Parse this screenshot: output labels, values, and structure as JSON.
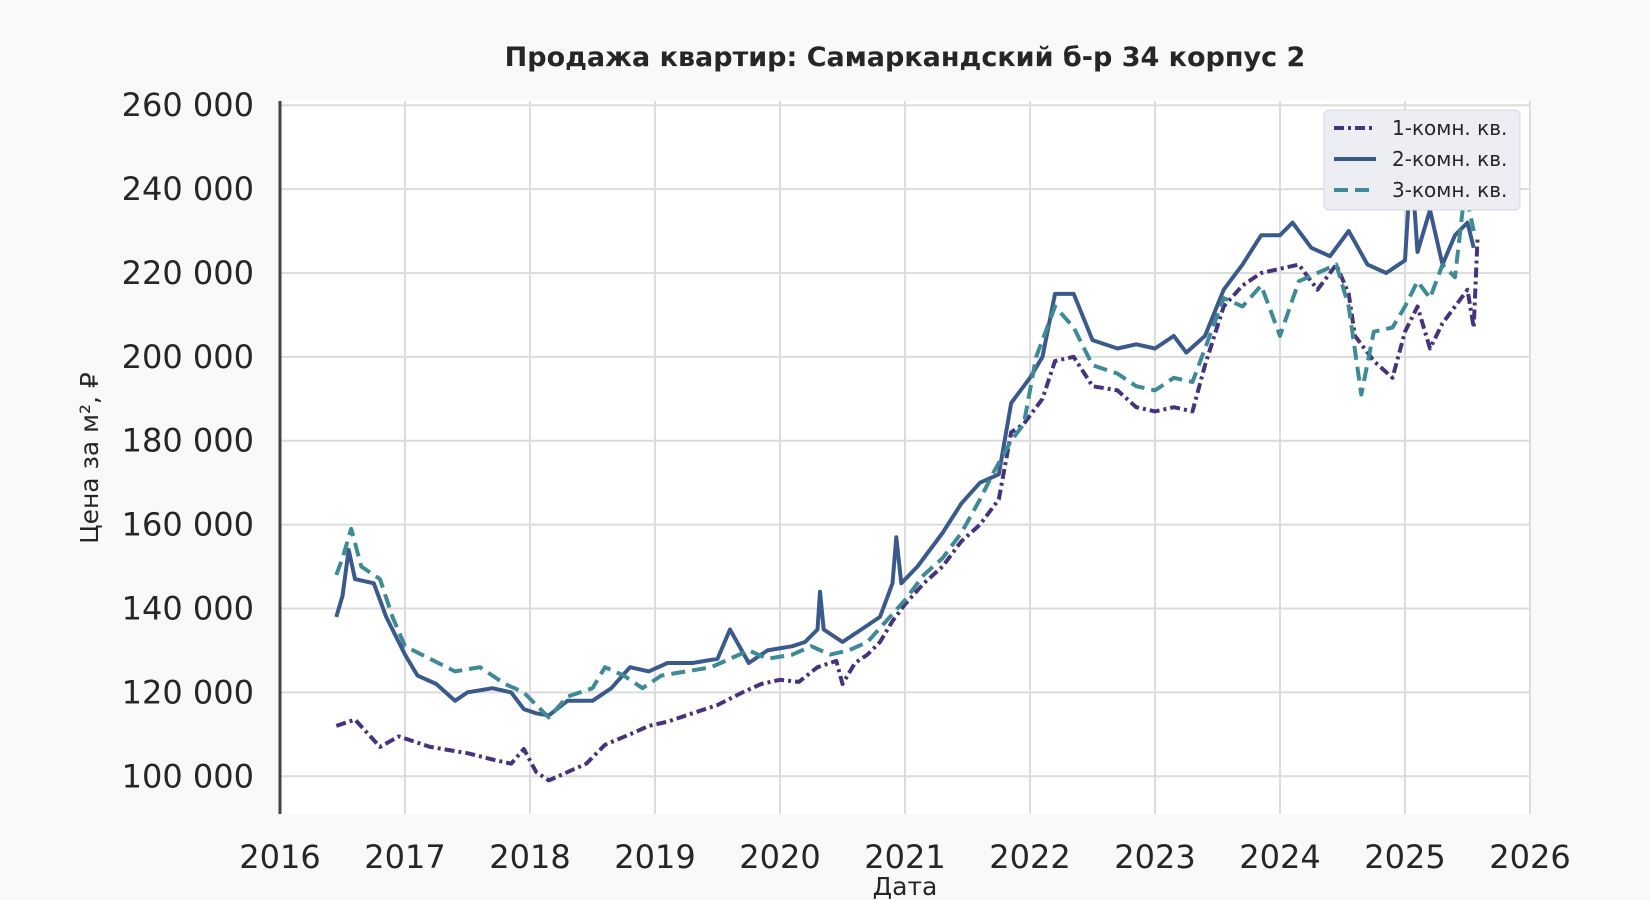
{
  "chart_data": {
    "type": "line",
    "title": "Продажа квартир: Самаркандский б-р 34 корпус 2",
    "xlabel": "Дата",
    "ylabel": "Цена за м², ₽",
    "xlim": [
      2016,
      2026
    ],
    "ylim": [
      91000,
      261000
    ],
    "x_ticks": [
      "2016",
      "2017",
      "2018",
      "2019",
      "2020",
      "2021",
      "2022",
      "2023",
      "2024",
      "2025",
      "2026"
    ],
    "y_ticks": [
      "100 000",
      "120 000",
      "140 000",
      "160 000",
      "180 000",
      "200 000",
      "220 000",
      "240 000",
      "260 000"
    ],
    "grid": true,
    "legend": "top-right",
    "series": [
      {
        "name": "1-комн. кв.",
        "color": "#46327e",
        "dash": "dashdot",
        "points": [
          [
            2016.45,
            112000
          ],
          [
            2016.6,
            113500
          ],
          [
            2016.8,
            107000
          ],
          [
            2016.95,
            109500
          ],
          [
            2017.2,
            107000
          ],
          [
            2017.5,
            105500
          ],
          [
            2017.7,
            104000
          ],
          [
            2017.85,
            103000
          ],
          [
            2017.95,
            106500
          ],
          [
            2018.05,
            101000
          ],
          [
            2018.15,
            99000
          ],
          [
            2018.3,
            101000
          ],
          [
            2018.45,
            103000
          ],
          [
            2018.6,
            107500
          ],
          [
            2018.8,
            110000
          ],
          [
            2018.95,
            112000
          ],
          [
            2019.1,
            113000
          ],
          [
            2019.3,
            115000
          ],
          [
            2019.5,
            117000
          ],
          [
            2019.7,
            120000
          ],
          [
            2019.85,
            122000
          ],
          [
            2020.0,
            123000
          ],
          [
            2020.15,
            122500
          ],
          [
            2020.3,
            126000
          ],
          [
            2020.45,
            127500
          ],
          [
            2020.5,
            122000
          ],
          [
            2020.6,
            127000
          ],
          [
            2020.7,
            129000
          ],
          [
            2020.8,
            132000
          ],
          [
            2020.9,
            137000
          ],
          [
            2021.0,
            141000
          ],
          [
            2021.15,
            146000
          ],
          [
            2021.3,
            150000
          ],
          [
            2021.45,
            156000
          ],
          [
            2021.6,
            160000
          ],
          [
            2021.75,
            166000
          ],
          [
            2021.85,
            182000
          ],
          [
            2021.95,
            184000
          ],
          [
            2022.1,
            190000
          ],
          [
            2022.2,
            199000
          ],
          [
            2022.35,
            200000
          ],
          [
            2022.5,
            193000
          ],
          [
            2022.7,
            192000
          ],
          [
            2022.85,
            188000
          ],
          [
            2023.0,
            187000
          ],
          [
            2023.15,
            188000
          ],
          [
            2023.3,
            187000
          ],
          [
            2023.4,
            198000
          ],
          [
            2023.55,
            212000
          ],
          [
            2023.7,
            217000
          ],
          [
            2023.85,
            220000
          ],
          [
            2024.0,
            221000
          ],
          [
            2024.15,
            222000
          ],
          [
            2024.3,
            216000
          ],
          [
            2024.45,
            222000
          ],
          [
            2024.55,
            215000
          ],
          [
            2024.6,
            205000
          ],
          [
            2024.75,
            199000
          ],
          [
            2024.9,
            195000
          ],
          [
            2025.0,
            206000
          ],
          [
            2025.1,
            212000
          ],
          [
            2025.2,
            202000
          ],
          [
            2025.3,
            208000
          ],
          [
            2025.4,
            212000
          ],
          [
            2025.5,
            216000
          ],
          [
            2025.55,
            207000
          ],
          [
            2025.58,
            228000
          ]
        ]
      },
      {
        "name": "2-комн. кв.",
        "color": "#3b5a8c",
        "dash": "solid",
        "points": [
          [
            2016.45,
            138000
          ],
          [
            2016.5,
            143000
          ],
          [
            2016.55,
            154000
          ],
          [
            2016.6,
            147000
          ],
          [
            2016.75,
            146000
          ],
          [
            2016.85,
            138000
          ],
          [
            2017.0,
            129000
          ],
          [
            2017.1,
            124000
          ],
          [
            2017.25,
            122000
          ],
          [
            2017.4,
            118000
          ],
          [
            2017.5,
            120000
          ],
          [
            2017.7,
            121000
          ],
          [
            2017.85,
            120000
          ],
          [
            2017.95,
            116000
          ],
          [
            2018.05,
            115000
          ],
          [
            2018.15,
            114500
          ],
          [
            2018.3,
            118000
          ],
          [
            2018.5,
            118000
          ],
          [
            2018.65,
            121000
          ],
          [
            2018.8,
            126000
          ],
          [
            2018.95,
            125000
          ],
          [
            2019.1,
            127000
          ],
          [
            2019.3,
            127000
          ],
          [
            2019.5,
            128000
          ],
          [
            2019.6,
            135000
          ],
          [
            2019.75,
            127000
          ],
          [
            2019.9,
            130000
          ],
          [
            2020.1,
            131000
          ],
          [
            2020.2,
            132000
          ],
          [
            2020.3,
            135000
          ],
          [
            2020.32,
            144000
          ],
          [
            2020.35,
            135000
          ],
          [
            2020.5,
            132000
          ],
          [
            2020.65,
            135000
          ],
          [
            2020.8,
            138000
          ],
          [
            2020.9,
            146000
          ],
          [
            2020.93,
            157000
          ],
          [
            2020.97,
            146000
          ],
          [
            2021.1,
            150000
          ],
          [
            2021.3,
            158000
          ],
          [
            2021.45,
            165000
          ],
          [
            2021.6,
            170000
          ],
          [
            2021.75,
            172000
          ],
          [
            2021.85,
            189000
          ],
          [
            2022.0,
            195000
          ],
          [
            2022.1,
            200000
          ],
          [
            2022.2,
            215000
          ],
          [
            2022.35,
            215000
          ],
          [
            2022.5,
            204000
          ],
          [
            2022.7,
            202000
          ],
          [
            2022.85,
            203000
          ],
          [
            2023.0,
            202000
          ],
          [
            2023.15,
            205000
          ],
          [
            2023.25,
            201000
          ],
          [
            2023.4,
            205000
          ],
          [
            2023.55,
            216000
          ],
          [
            2023.7,
            222000
          ],
          [
            2023.85,
            229000
          ],
          [
            2024.0,
            229000
          ],
          [
            2024.1,
            232000
          ],
          [
            2024.25,
            226000
          ],
          [
            2024.4,
            224000
          ],
          [
            2024.55,
            230000
          ],
          [
            2024.7,
            222000
          ],
          [
            2024.85,
            220000
          ],
          [
            2025.0,
            223000
          ],
          [
            2025.05,
            247000
          ],
          [
            2025.1,
            225000
          ],
          [
            2025.2,
            235000
          ],
          [
            2025.3,
            222000
          ],
          [
            2025.4,
            229000
          ],
          [
            2025.5,
            232000
          ],
          [
            2025.55,
            226000
          ]
        ]
      },
      {
        "name": "3-комн. кв.",
        "color": "#3e8a96",
        "dash": "dashed",
        "points": [
          [
            2016.45,
            148000
          ],
          [
            2016.5,
            152000
          ],
          [
            2016.57,
            159000
          ],
          [
            2016.65,
            150000
          ],
          [
            2016.8,
            147000
          ],
          [
            2016.9,
            138000
          ],
          [
            2017.0,
            131000
          ],
          [
            2017.2,
            128000
          ],
          [
            2017.4,
            125000
          ],
          [
            2017.6,
            126000
          ],
          [
            2017.8,
            122000
          ],
          [
            2017.95,
            120000
          ],
          [
            2018.05,
            117000
          ],
          [
            2018.15,
            114000
          ],
          [
            2018.3,
            119000
          ],
          [
            2018.5,
            121000
          ],
          [
            2018.6,
            126000
          ],
          [
            2018.75,
            124000
          ],
          [
            2018.9,
            121000
          ],
          [
            2019.05,
            124000
          ],
          [
            2019.25,
            125000
          ],
          [
            2019.45,
            126000
          ],
          [
            2019.6,
            128000
          ],
          [
            2019.75,
            130000
          ],
          [
            2019.9,
            128000
          ],
          [
            2020.1,
            129000
          ],
          [
            2020.25,
            131000
          ],
          [
            2020.4,
            129000
          ],
          [
            2020.55,
            130000
          ],
          [
            2020.7,
            132000
          ],
          [
            2020.85,
            137000
          ],
          [
            2021.0,
            142000
          ],
          [
            2021.15,
            148000
          ],
          [
            2021.3,
            152000
          ],
          [
            2021.45,
            158000
          ],
          [
            2021.6,
            166000
          ],
          [
            2021.7,
            172000
          ],
          [
            2021.85,
            180000
          ],
          [
            2021.95,
            184000
          ],
          [
            2022.05,
            200000
          ],
          [
            2022.2,
            212000
          ],
          [
            2022.35,
            207000
          ],
          [
            2022.5,
            198000
          ],
          [
            2022.7,
            196000
          ],
          [
            2022.85,
            193000
          ],
          [
            2023.0,
            192000
          ],
          [
            2023.15,
            195000
          ],
          [
            2023.3,
            194000
          ],
          [
            2023.4,
            202000
          ],
          [
            2023.55,
            214000
          ],
          [
            2023.7,
            212000
          ],
          [
            2023.85,
            217000
          ],
          [
            2024.0,
            205000
          ],
          [
            2024.15,
            218000
          ],
          [
            2024.3,
            220000
          ],
          [
            2024.45,
            222000
          ],
          [
            2024.55,
            212000
          ],
          [
            2024.65,
            191000
          ],
          [
            2024.75,
            206000
          ],
          [
            2024.9,
            207000
          ],
          [
            2025.0,
            212000
          ],
          [
            2025.1,
            218000
          ],
          [
            2025.2,
            214000
          ],
          [
            2025.3,
            222000
          ],
          [
            2025.4,
            219000
          ],
          [
            2025.48,
            240000
          ],
          [
            2025.55,
            230000
          ]
        ]
      }
    ]
  }
}
